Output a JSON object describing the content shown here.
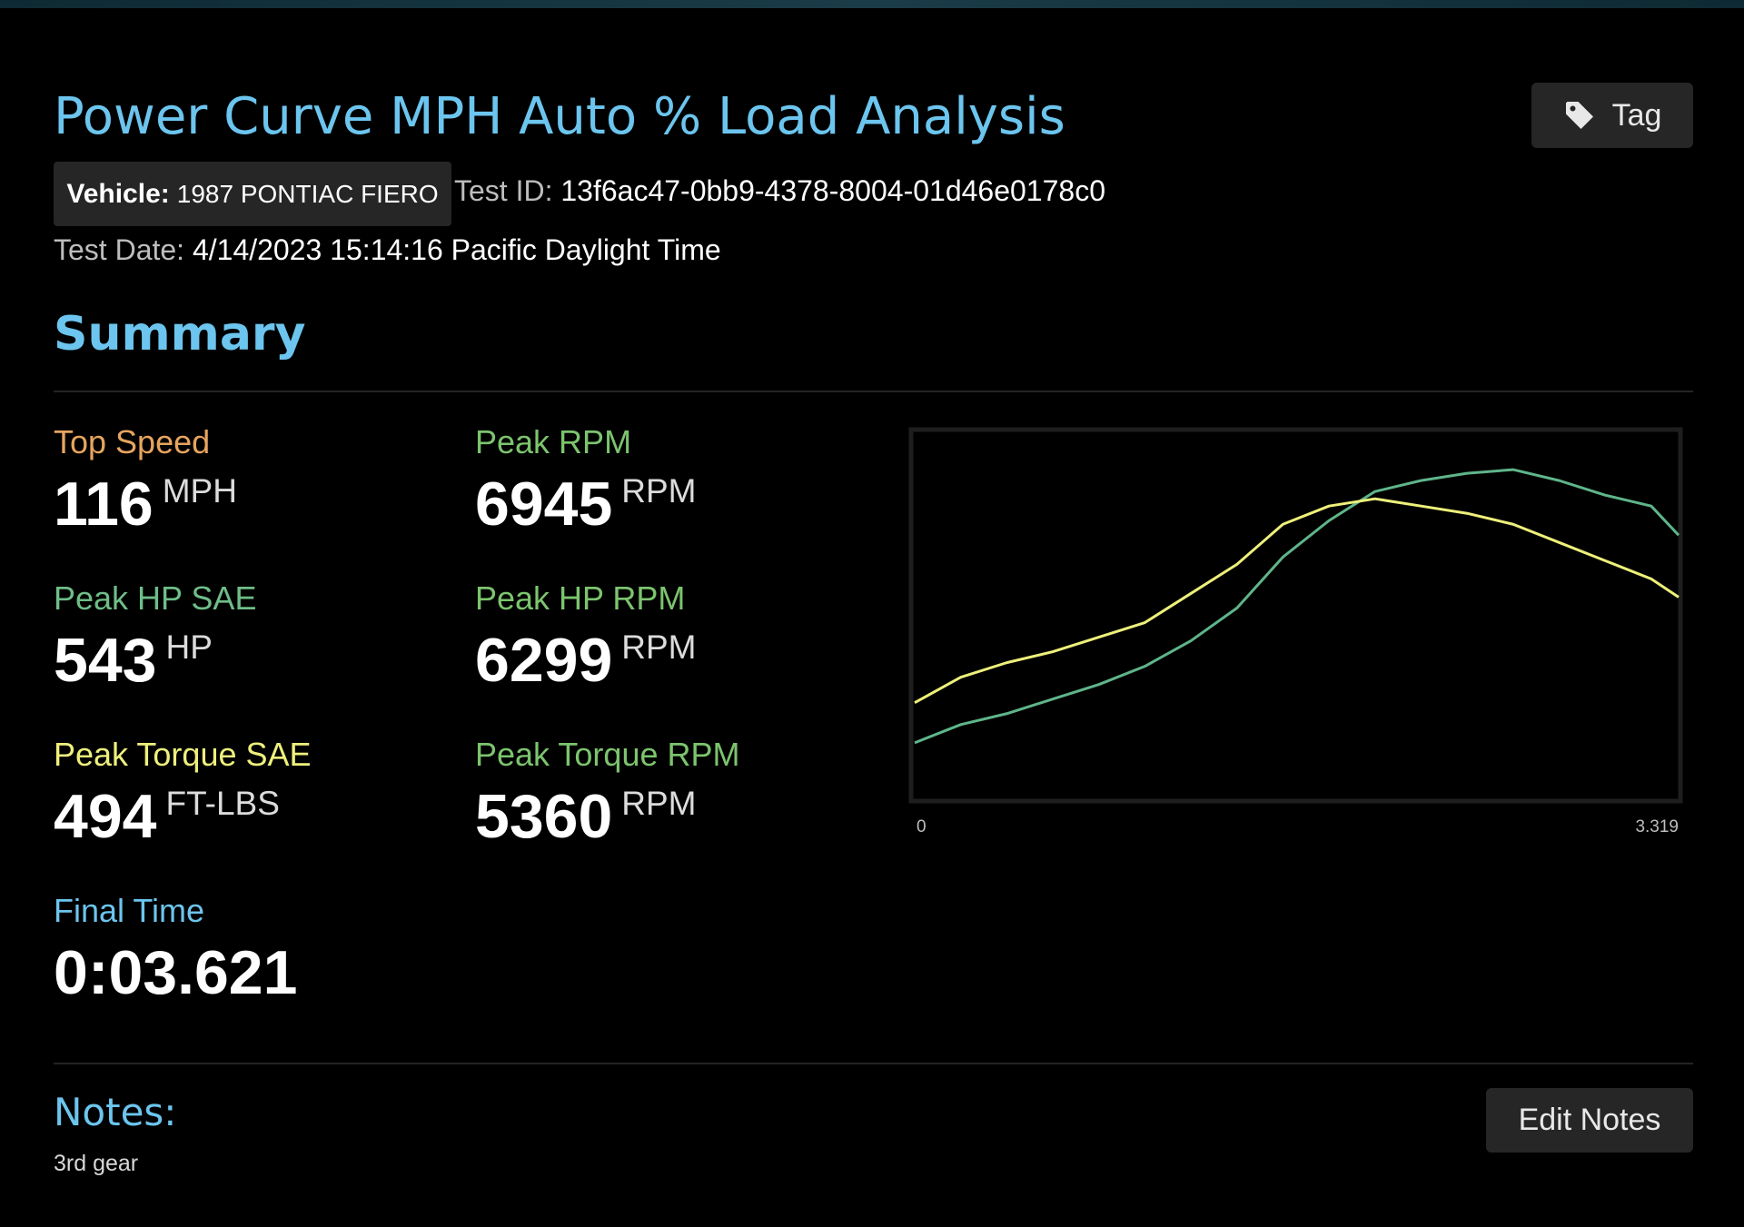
{
  "header": {
    "title": "Power Curve MPH Auto % Load Analysis",
    "tag_button": "Tag",
    "vehicle_label": "Vehicle:",
    "vehicle": "1987 PONTIAC FIERO",
    "test_id_label": "Test ID:",
    "test_id": "13f6ac47-0bb9-4378-8004-01d46e0178c0",
    "test_date_label": "Test Date:",
    "test_date": "4/14/2023 15:14:16 Pacific Daylight Time"
  },
  "summary": {
    "title": "Summary",
    "stats": [
      {
        "label": "Top Speed",
        "value": 116,
        "unit": "MPH",
        "color": "#e7a45f"
      },
      {
        "label": "Peak RPM",
        "value": 6945,
        "unit": "RPM",
        "color": "#7cc46e"
      },
      {
        "label": "Peak HP SAE",
        "value": 543,
        "unit": "HP",
        "color": "#6fbd88"
      },
      {
        "label": "Peak HP RPM",
        "value": 6299,
        "unit": "RPM",
        "color": "#7cc46e"
      },
      {
        "label": "Peak Torque SAE",
        "value": 494,
        "unit": "FT-LBS",
        "color": "#eef07c"
      },
      {
        "label": "Peak Torque RPM",
        "value": 5360,
        "unit": "RPM",
        "color": "#7cc46e"
      },
      {
        "label": "Final Time",
        "value": "0:03.621",
        "color": "#6cc5ee"
      }
    ]
  },
  "chart_data": {
    "type": "line",
    "x": [
      0,
      0.2,
      0.4,
      0.6,
      0.8,
      1.0,
      1.2,
      1.4,
      1.6,
      1.8,
      2.0,
      2.2,
      2.4,
      2.6,
      2.8,
      3.0,
      3.2,
      3.319
    ],
    "xlim": [
      0,
      3.319
    ],
    "xticks": [
      0,
      3.319
    ],
    "ylim": [
      0,
      100
    ],
    "series": [
      {
        "color": "#5fb58a",
        "values": [
          15,
          20,
          23,
          27,
          31,
          36,
          43,
          52,
          66,
          76,
          84,
          87,
          89,
          90,
          87,
          83,
          80,
          72
        ]
      },
      {
        "color": "#eef07a",
        "values": [
          26,
          33,
          37,
          40,
          44,
          48,
          56,
          64,
          75,
          80,
          82,
          80,
          78,
          75,
          70,
          65,
          60,
          55
        ]
      }
    ]
  },
  "notes": {
    "title": "Notes:",
    "text": "3rd gear",
    "edit_button": "Edit Notes"
  }
}
